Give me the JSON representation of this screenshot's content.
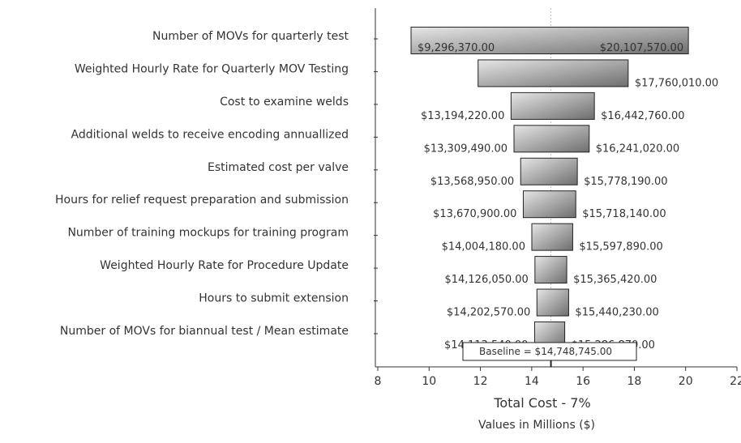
{
  "chart_data": {
    "type": "bar",
    "orientation": "horizontal-tornado",
    "categories": [
      "Number of MOVs for quarterly test",
      "Weighted Hourly Rate for Quarterly MOV Testing",
      "Cost to examine welds",
      "Additional welds to receive encoding annuallized",
      "Estimated cost per valve",
      "Hours for relief request preparation and submission",
      "Number of training mockups for training program",
      "Weighted Hourly Rate for Procedure Update",
      "Hours to submit extension",
      "Number of MOVs for biannual test / Mean estimate"
    ],
    "series": [
      {
        "low": [
          9.29637,
          11.91,
          13.19422,
          13.30949,
          13.56895,
          13.6709,
          14.00418,
          14.12605,
          14.20257,
          14.11354
        ],
        "high": [
          20.10757,
          17.76001,
          16.44276,
          16.24102,
          15.77819,
          15.71814,
          15.59789,
          15.36542,
          15.44023,
          15.28687
        ],
        "low_labels": [
          "$9,296,370.00",
          "",
          "$13,194,220.00",
          "$13,309,490.00",
          "$13,568,950.00",
          "$13,670,900.00",
          "$14,004,180.00",
          "$14,126,050.00",
          "$14,202,570.00",
          "$14,113,540.00"
        ],
        "high_labels": [
          "$20,107,570.00",
          "$17,760,010.00",
          "$16,442,760.00",
          "$16,241,020.00",
          "$15,778,190.00",
          "$15,718,140.00",
          "$15,597,890.00",
          "$15,365,420.00",
          "$15,440,230.00",
          "$15,286,870.00"
        ]
      }
    ],
    "baseline": 14.748745,
    "baseline_label": "Baseline = $14,748,745.00",
    "xlim": [
      8,
      22
    ],
    "xticks": [
      8,
      10,
      12,
      14,
      16,
      18,
      20,
      22
    ],
    "xlabel": "Total Cost - 7%",
    "xsublabel": "Values in Millions ($)",
    "grid": false,
    "colors": {
      "bar_light": "#e6e6e6",
      "bar_dark": "#6e6e6e",
      "bar_stroke": "#222222",
      "axis": "#333333",
      "baseline_line": "#bbbbbb"
    }
  }
}
